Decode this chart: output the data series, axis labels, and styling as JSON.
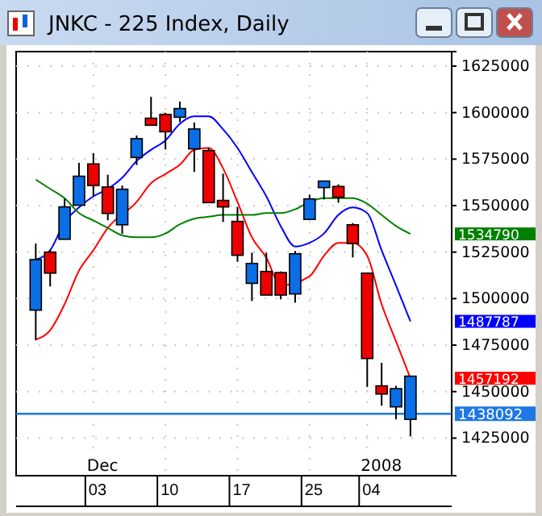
{
  "chart_data": {
    "type": "candlestick",
    "title": "JNKC - 225 Index, Daily",
    "categories": [
      null,
      null,
      null,
      null,
      "03",
      null,
      null,
      null,
      null,
      "10",
      null,
      null,
      null,
      null,
      "17",
      null,
      null,
      null,
      null,
      "25",
      null,
      null,
      null,
      "04",
      null,
      null,
      null
    ],
    "ohlc": [
      [
        1493800,
        1529600,
        1477600,
        1521000
      ],
      [
        1525000,
        1526200,
        1506500,
        1513700
      ],
      [
        1531900,
        1553600,
        1531900,
        1549300
      ],
      [
        1550200,
        1573000,
        1550200,
        1565800
      ],
      [
        1572400,
        1578200,
        1555100,
        1560800
      ],
      [
        1560000,
        1566600,
        1542100,
        1545800
      ],
      [
        1539700,
        1560800,
        1534800,
        1558800
      ],
      [
        1575900,
        1587700,
        1571800,
        1586000
      ],
      [
        1597000,
        1608500,
        1593200,
        1593200
      ],
      [
        1599000,
        1599900,
        1580200,
        1589700
      ],
      [
        1597500,
        1605900,
        1594900,
        1602200
      ],
      [
        1580500,
        1594700,
        1568100,
        1591200
      ],
      [
        1579600,
        1581100,
        1551600,
        1551600
      ],
      [
        1552800,
        1567200,
        1541200,
        1549300
      ],
      [
        1541500,
        1549300,
        1519800,
        1523300
      ],
      [
        1508200,
        1524700,
        1498700,
        1518900
      ],
      [
        1514600,
        1524700,
        1501900,
        1501900
      ],
      [
        1514000,
        1514600,
        1499600,
        1501900
      ],
      [
        1502500,
        1525600,
        1497800,
        1524100
      ],
      [
        1542600,
        1555900,
        1542600,
        1553600
      ],
      [
        1559700,
        1563200,
        1553300,
        1563200
      ],
      [
        1560300,
        1561400,
        1551600,
        1554500
      ],
      [
        1539700,
        1540600,
        1522100,
        1529600
      ],
      [
        1513700,
        1513700,
        1452500,
        1467800
      ],
      [
        1453100,
        1465500,
        1442400,
        1448700
      ],
      [
        1441800,
        1453100,
        1435100,
        1451600
      ],
      [
        1435100,
        1458300,
        1425900,
        1458300
      ]
    ],
    "colors": [
      "#0a6ee6",
      "#ee0000",
      "#0a6ee6",
      "#0a6ee6",
      "#ee0000",
      "#ee0000",
      "#0a6ee6",
      "#0a6ee6",
      "#ee0000",
      "#ee0000",
      "#0a6ee6",
      "#0a6ee6",
      "#ee0000",
      "#ee0000",
      "#ee0000",
      "#0a6ee6",
      "#ee0000",
      "#ee0000",
      "#0a6ee6",
      "#0a6ee6",
      "#0a6ee6",
      "#ee0000",
      "#ee0000",
      "#ee0000",
      "#ee0000",
      "#0a6ee6",
      "#0a6ee6"
    ],
    "series": [
      {
        "type": "line",
        "color": "#0000ff",
        "values": [
          1521000,
          1526000,
          1541000,
          1549000,
          1555000,
          1559000,
          1565000,
          1574000,
          1580000,
          1585000,
          1594000,
          1598000,
          1598000,
          1591000,
          1581000,
          1568000,
          1555000,
          1539000,
          1528000,
          1530000,
          1535000,
          1545000,
          1549000,
          1546000,
          1526000,
          1507000,
          1487787
        ]
      },
      {
        "type": "line",
        "color": "#ff0000",
        "values": [
          1478000,
          1483000,
          1497000,
          1515000,
          1526000,
          1538000,
          null,
          1552000,
          1562000,
          1567000,
          1572000,
          1580000,
          1581000,
          1570000,
          1552000,
          1533000,
          1522000,
          1507000,
          null,
          1512000,
          1523000,
          1530000,
          1530000,
          1523000,
          1497000,
          1477000,
          1457192
        ]
      },
      {
        "type": "line",
        "color": "#008000",
        "values": [
          1564000,
          1559000,
          1554000,
          1546000,
          1542000,
          1538000,
          1534000,
          1533000,
          1533000,
          1535000,
          1540000,
          1543000,
          1544000,
          1545000,
          1545000,
          1545000,
          1546000,
          1546000,
          1548000,
          1552000,
          1554000,
          1554000,
          1554000,
          1551000,
          1545000,
          1539000,
          1534790
        ]
      }
    ],
    "annotations": [
      "1487787",
      "1457192",
      "1534790",
      "Dec",
      "2008"
    ],
    "ref_lines": [
      {
        "axis": "y",
        "value": 1438092,
        "label": "1438092",
        "color": "#1e78e6"
      }
    ],
    "ylim": [
      1404800,
      1632800
    ],
    "yticks": [
      1425000,
      1450000,
      1475000,
      1500000,
      1525000,
      1550000,
      1575000,
      1600000,
      1625000
    ],
    "grid": true
  }
}
